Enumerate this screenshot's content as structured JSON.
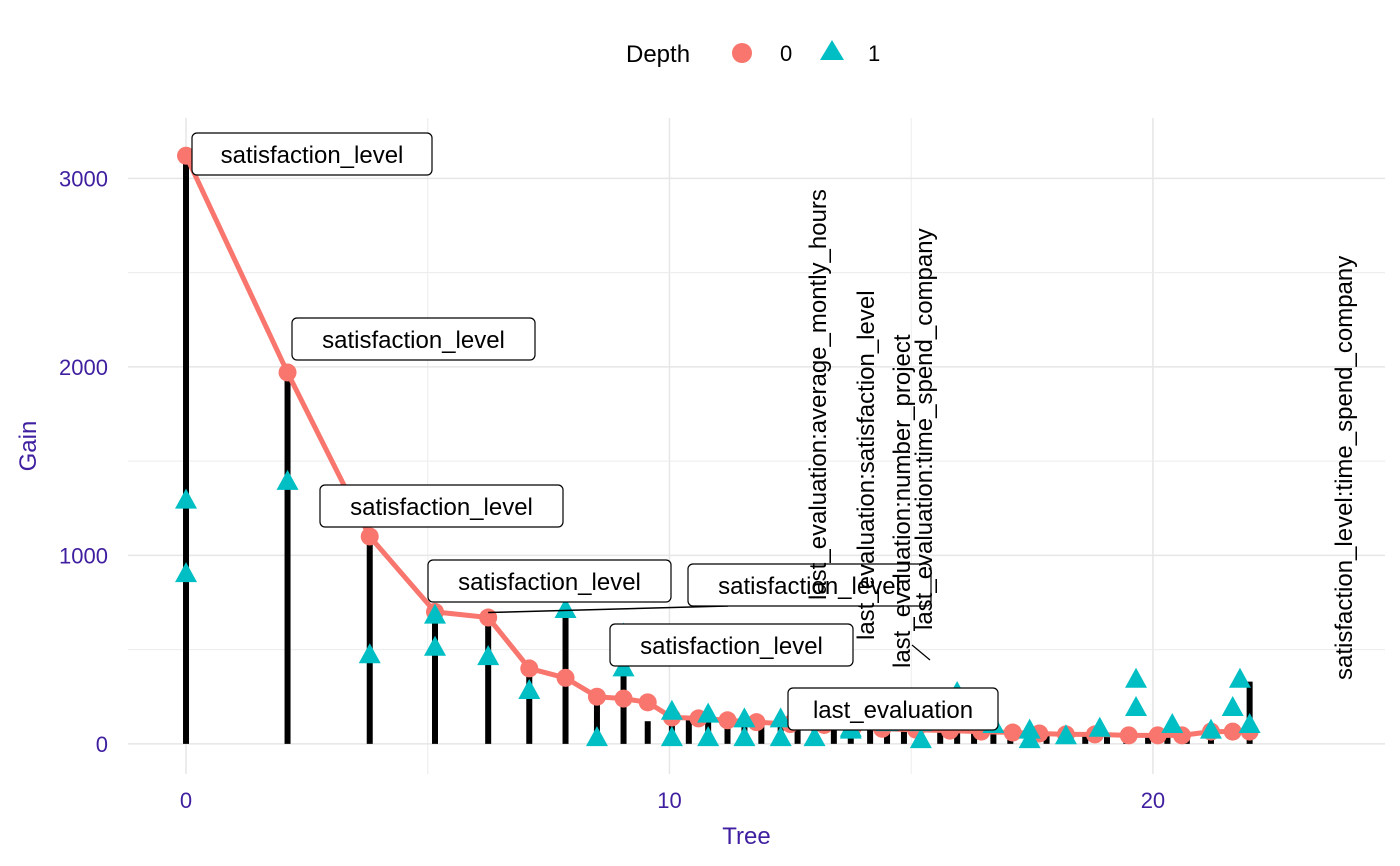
{
  "chart_data": {
    "type": "lollipop",
    "xlabel": "Tree",
    "ylabel": "Gain",
    "xlim": [
      -1.2,
      24.8
    ],
    "ylim": [
      -160,
      3320
    ],
    "x_ticks": [
      0,
      10,
      20
    ],
    "x_tick_labels": [
      "0",
      "10",
      "20"
    ],
    "y_ticks": [
      0,
      1000,
      2000,
      3000
    ],
    "y_tick_labels": [
      "0",
      "1000",
      "2000",
      "3000"
    ],
    "grid": true,
    "legend": {
      "title": "Depth",
      "position": "top",
      "entries": [
        {
          "label": "0",
          "shape": "circle",
          "color": "#F8766D"
        },
        {
          "label": "1",
          "shape": "triangle",
          "color": "#00BFC4"
        }
      ]
    },
    "stems": [
      {
        "x": 0,
        "y": 3120
      },
      {
        "x": 2.1,
        "y": 1970
      },
      {
        "x": 3.8,
        "y": 1100
      },
      {
        "x": 5.15,
        "y": 700
      },
      {
        "x": 6.25,
        "y": 670
      },
      {
        "x": 7.1,
        "y": 400
      },
      {
        "x": 7.85,
        "y": 700
      },
      {
        "x": 8.5,
        "y": 230
      },
      {
        "x": 9.05,
        "y": 560
      },
      {
        "x": 9.55,
        "y": 120
      },
      {
        "x": 10.05,
        "y": 150
      },
      {
        "x": 10.4,
        "y": 140
      },
      {
        "x": 10.8,
        "y": 145
      },
      {
        "x": 11.2,
        "y": 130
      },
      {
        "x": 11.55,
        "y": 130
      },
      {
        "x": 11.9,
        "y": 120
      },
      {
        "x": 12.3,
        "y": 110
      },
      {
        "x": 12.65,
        "y": 100
      },
      {
        "x": 13.0,
        "y": 100
      },
      {
        "x": 13.4,
        "y": 90
      },
      {
        "x": 13.75,
        "y": 90
      },
      {
        "x": 14.15,
        "y": 85
      },
      {
        "x": 14.5,
        "y": 80
      },
      {
        "x": 14.85,
        "y": 75
      },
      {
        "x": 15.2,
        "y": 70
      },
      {
        "x": 15.6,
        "y": 70
      },
      {
        "x": 15.95,
        "y": 65
      },
      {
        "x": 16.3,
        "y": 65
      },
      {
        "x": 16.7,
        "y": 60
      },
      {
        "x": 17.05,
        "y": 60
      },
      {
        "x": 17.45,
        "y": 55
      },
      {
        "x": 17.8,
        "y": 55
      },
      {
        "x": 18.2,
        "y": 50
      },
      {
        "x": 18.6,
        "y": 50
      },
      {
        "x": 19.05,
        "y": 50
      },
      {
        "x": 19.45,
        "y": 50
      },
      {
        "x": 19.9,
        "y": 45
      },
      {
        "x": 20.3,
        "y": 45
      },
      {
        "x": 20.7,
        "y": 45
      },
      {
        "x": 21.2,
        "y": 65
      },
      {
        "x": 22.0,
        "y": 330
      }
    ],
    "series": [
      {
        "name": "0",
        "marker": "circle",
        "color": "#F8766D",
        "line": true,
        "points": [
          {
            "x": 0,
            "y": 3120
          },
          {
            "x": 2.1,
            "y": 1970
          },
          {
            "x": 3.8,
            "y": 1100
          },
          {
            "x": 5.15,
            "y": 700
          },
          {
            "x": 6.25,
            "y": 670
          },
          {
            "x": 7.1,
            "y": 400
          },
          {
            "x": 7.85,
            "y": 350
          },
          {
            "x": 8.5,
            "y": 250
          },
          {
            "x": 9.05,
            "y": 240
          },
          {
            "x": 9.55,
            "y": 220
          },
          {
            "x": 10.05,
            "y": 140
          },
          {
            "x": 10.6,
            "y": 135
          },
          {
            "x": 11.2,
            "y": 125
          },
          {
            "x": 11.8,
            "y": 115
          },
          {
            "x": 12.5,
            "y": 105
          },
          {
            "x": 13.2,
            "y": 100
          },
          {
            "x": 13.8,
            "y": 90
          },
          {
            "x": 14.4,
            "y": 80
          },
          {
            "x": 15.1,
            "y": 75
          },
          {
            "x": 15.8,
            "y": 70
          },
          {
            "x": 16.45,
            "y": 65
          },
          {
            "x": 17.1,
            "y": 60
          },
          {
            "x": 17.65,
            "y": 55
          },
          {
            "x": 18.2,
            "y": 50
          },
          {
            "x": 18.8,
            "y": 50
          },
          {
            "x": 19.5,
            "y": 45
          },
          {
            "x": 20.1,
            "y": 45
          },
          {
            "x": 20.6,
            "y": 45
          },
          {
            "x": 21.2,
            "y": 65
          },
          {
            "x": 21.65,
            "y": 65
          },
          {
            "x": 22.0,
            "y": 65
          }
        ]
      },
      {
        "name": "1",
        "marker": "triangle",
        "color": "#00BFC4",
        "line": false,
        "points": [
          {
            "x": 0,
            "y": 1290
          },
          {
            "x": 0,
            "y": 900
          },
          {
            "x": 2.1,
            "y": 1390
          },
          {
            "x": 3.8,
            "y": 470
          },
          {
            "x": 5.15,
            "y": 680
          },
          {
            "x": 5.15,
            "y": 510
          },
          {
            "x": 6.25,
            "y": 460
          },
          {
            "x": 7.1,
            "y": 280
          },
          {
            "x": 7.85,
            "y": 710
          },
          {
            "x": 8.5,
            "y": 30
          },
          {
            "x": 9.05,
            "y": 580
          },
          {
            "x": 9.05,
            "y": 400
          },
          {
            "x": 10.05,
            "y": 170
          },
          {
            "x": 10.05,
            "y": 30
          },
          {
            "x": 10.8,
            "y": 155
          },
          {
            "x": 10.8,
            "y": 30
          },
          {
            "x": 11.55,
            "y": 130
          },
          {
            "x": 11.55,
            "y": 30
          },
          {
            "x": 12.3,
            "y": 130
          },
          {
            "x": 12.3,
            "y": 30
          },
          {
            "x": 13.0,
            "y": 120
          },
          {
            "x": 13.0,
            "y": 30
          },
          {
            "x": 13.75,
            "y": 80
          },
          {
            "x": 13.75,
            "y": 70
          },
          {
            "x": 14.5,
            "y": 110
          },
          {
            "x": 15.2,
            "y": 110
          },
          {
            "x": 15.2,
            "y": 20
          },
          {
            "x": 15.95,
            "y": 270
          },
          {
            "x": 16.7,
            "y": 100
          },
          {
            "x": 17.45,
            "y": 70
          },
          {
            "x": 17.45,
            "y": 20
          },
          {
            "x": 18.2,
            "y": 40
          },
          {
            "x": 18.9,
            "y": 80
          },
          {
            "x": 19.65,
            "y": 190
          },
          {
            "x": 19.65,
            "y": 340
          },
          {
            "x": 20.4,
            "y": 100
          },
          {
            "x": 21.2,
            "y": 70
          },
          {
            "x": 21.65,
            "y": 190
          },
          {
            "x": 21.8,
            "y": 340
          },
          {
            "x": 22.0,
            "y": 100
          }
        ]
      }
    ],
    "annotations": [
      {
        "text": "satisfaction_level",
        "x": 0,
        "y": 3120,
        "style": "box"
      },
      {
        "text": "satisfaction_level",
        "x": 2.1,
        "y": 1970,
        "style": "box"
      },
      {
        "text": "satisfaction_level",
        "x": 3.8,
        "y": 1100,
        "style": "box"
      },
      {
        "text": "satisfaction_level",
        "x": 5.15,
        "y": 700,
        "style": "box"
      },
      {
        "text": "satisfaction_level",
        "x": 6.25,
        "y": 670,
        "style": "box"
      },
      {
        "text": "satisfaction_level",
        "x": 7.1,
        "y": 400,
        "style": "box"
      },
      {
        "text": "last_evaluation",
        "x": 8.5,
        "y": 250,
        "style": "box"
      },
      {
        "text": "last_evaluation:average_montly_hours",
        "x": 7.85,
        "y": 700,
        "style": "vertical"
      },
      {
        "text": "last_evaluation:satisfaction_level",
        "x": 8.5,
        "y": 700,
        "style": "vertical"
      },
      {
        "text": "last_evaluation:number_project",
        "x": 9.05,
        "y": 400,
        "style": "vertical"
      },
      {
        "text": "last_evaluation:time_spend_company",
        "x": 9.05,
        "y": 580,
        "style": "vertical"
      },
      {
        "text": "satisfaction_level:time_spend_company",
        "x": 22.0,
        "y": 340,
        "style": "vertical"
      }
    ]
  }
}
